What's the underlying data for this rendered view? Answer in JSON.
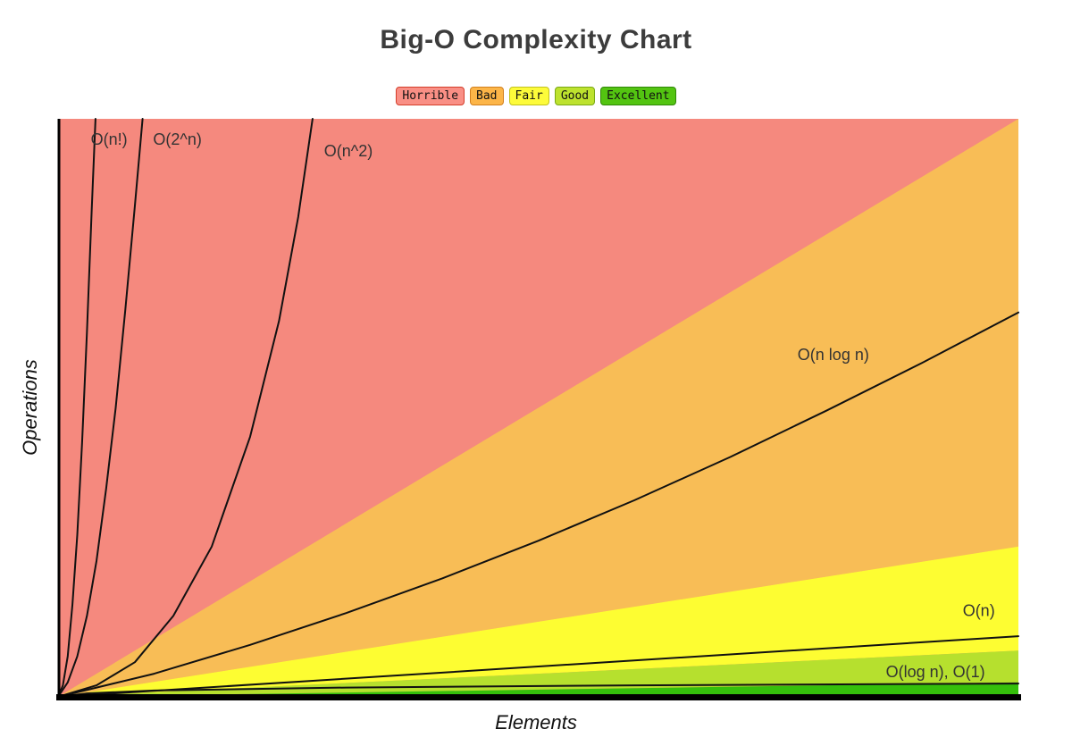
{
  "title": "Big-O Complexity Chart",
  "axes": {
    "x": "Elements",
    "y": "Operations"
  },
  "legend": [
    {
      "label": "Horrible",
      "bg": "#f98f85",
      "border": "#d43d2a"
    },
    {
      "label": "Bad",
      "bg": "#fcb548",
      "border": "#d2801e"
    },
    {
      "label": "Fair",
      "bg": "#fdfb3a",
      "border": "#c2c21d"
    },
    {
      "label": "Good",
      "bg": "#bde22e",
      "border": "#7aa814"
    },
    {
      "label": "Excellent",
      "bg": "#53c411",
      "border": "#2f8706"
    }
  ],
  "chart_data": {
    "type": "line",
    "title": "Big-O Complexity Chart",
    "xlabel": "Elements",
    "ylabel": "Operations",
    "x_axis_ticks": [],
    "y_axis_ticks": [],
    "grid": false,
    "legend_position": "top-center",
    "coords_note": "points are normalized plot fractions: x 0-1 left to right, y 0-1 bottom to top; no numeric ticks are shown in the figure",
    "series": [
      {
        "id": "n-factorial",
        "name": "O(n!)",
        "rating": "Horrible",
        "growth": "factorial, near-vertical",
        "points": [
          [
            0,
            0
          ],
          [
            0.005,
            0.02
          ],
          [
            0.01,
            0.07
          ],
          [
            0.015,
            0.16
          ],
          [
            0.02,
            0.28
          ],
          [
            0.025,
            0.44
          ],
          [
            0.03,
            0.63
          ],
          [
            0.035,
            0.84
          ],
          [
            0.039,
            1
          ]
        ],
        "label_pos": [
          0.034,
          0.955
        ]
      },
      {
        "id": "2-pow-n",
        "name": "O(2^n)",
        "rating": "Horrible",
        "growth": "exponential",
        "points": [
          [
            0,
            0
          ],
          [
            0.01,
            0.025
          ],
          [
            0.02,
            0.07
          ],
          [
            0.03,
            0.14
          ],
          [
            0.04,
            0.235
          ],
          [
            0.05,
            0.36
          ],
          [
            0.06,
            0.5
          ],
          [
            0.07,
            0.67
          ],
          [
            0.08,
            0.85
          ],
          [
            0.088,
            1
          ]
        ],
        "label_pos": [
          0.099,
          0.955
        ]
      },
      {
        "id": "n-squared",
        "name": "O(n^2)",
        "rating": "Horrible",
        "growth": "quadratic",
        "points": [
          [
            0,
            0
          ],
          [
            0.04,
            0.02
          ],
          [
            0.08,
            0.06
          ],
          [
            0.12,
            0.14
          ],
          [
            0.16,
            0.26
          ],
          [
            0.2,
            0.45
          ],
          [
            0.23,
            0.65
          ],
          [
            0.25,
            0.83
          ],
          [
            0.265,
            1
          ]
        ],
        "label_pos": [
          0.277,
          0.935
        ]
      },
      {
        "id": "n-log-n",
        "name": "O(n log n)",
        "rating": "Bad",
        "growth": "linearithmic",
        "points": [
          [
            0,
            0
          ],
          [
            0.1,
            0.04
          ],
          [
            0.2,
            0.09
          ],
          [
            0.3,
            0.145
          ],
          [
            0.4,
            0.205
          ],
          [
            0.5,
            0.27
          ],
          [
            0.6,
            0.34
          ],
          [
            0.7,
            0.415
          ],
          [
            0.8,
            0.495
          ],
          [
            0.9,
            0.578
          ],
          [
            1,
            0.665
          ]
        ],
        "label_pos": [
          0.77,
          0.583
        ]
      },
      {
        "id": "n",
        "name": "O(n)",
        "rating": "Fair",
        "growth": "linear",
        "points": [
          [
            0,
            0
          ],
          [
            1,
            0.105
          ]
        ],
        "label_pos": [
          0.942,
          0.14
        ]
      },
      {
        "id": "log-n-1",
        "name": "O(log n), O(1)",
        "rating": "Good / Excellent",
        "growth": "logarithmic and constant, nearly flat",
        "points": [
          [
            0,
            0
          ],
          [
            0.03,
            0.006
          ],
          [
            0.1,
            0.011
          ],
          [
            0.3,
            0.016
          ],
          [
            0.6,
            0.02
          ],
          [
            1,
            0.023
          ]
        ],
        "label_pos": [
          0.862,
          0.034
        ]
      }
    ],
    "regions": [
      {
        "rating": "Horrible",
        "color": "#f5897e",
        "polygon": [
          [
            0,
            0
          ],
          [
            0,
            1
          ],
          [
            1,
            1
          ],
          [
            1,
            0
          ]
        ]
      },
      {
        "rating": "Bad",
        "color": "#f8bd56",
        "polygon": [
          [
            0,
            0
          ],
          [
            1,
            1
          ],
          [
            1,
            0.26
          ]
        ]
      },
      {
        "rating": "Fair",
        "color": "#fdfd32",
        "polygon": [
          [
            0,
            0
          ],
          [
            1,
            0.26
          ],
          [
            1,
            0.08
          ]
        ]
      },
      {
        "rating": "Good",
        "color": "#b6e02e",
        "polygon": [
          [
            0,
            0
          ],
          [
            1,
            0.08
          ],
          [
            1,
            0.025
          ]
        ]
      },
      {
        "rating": "Excellent",
        "color": "#35c00b",
        "polygon": [
          [
            0,
            0
          ],
          [
            1,
            0.025
          ],
          [
            1,
            0
          ]
        ]
      }
    ]
  }
}
